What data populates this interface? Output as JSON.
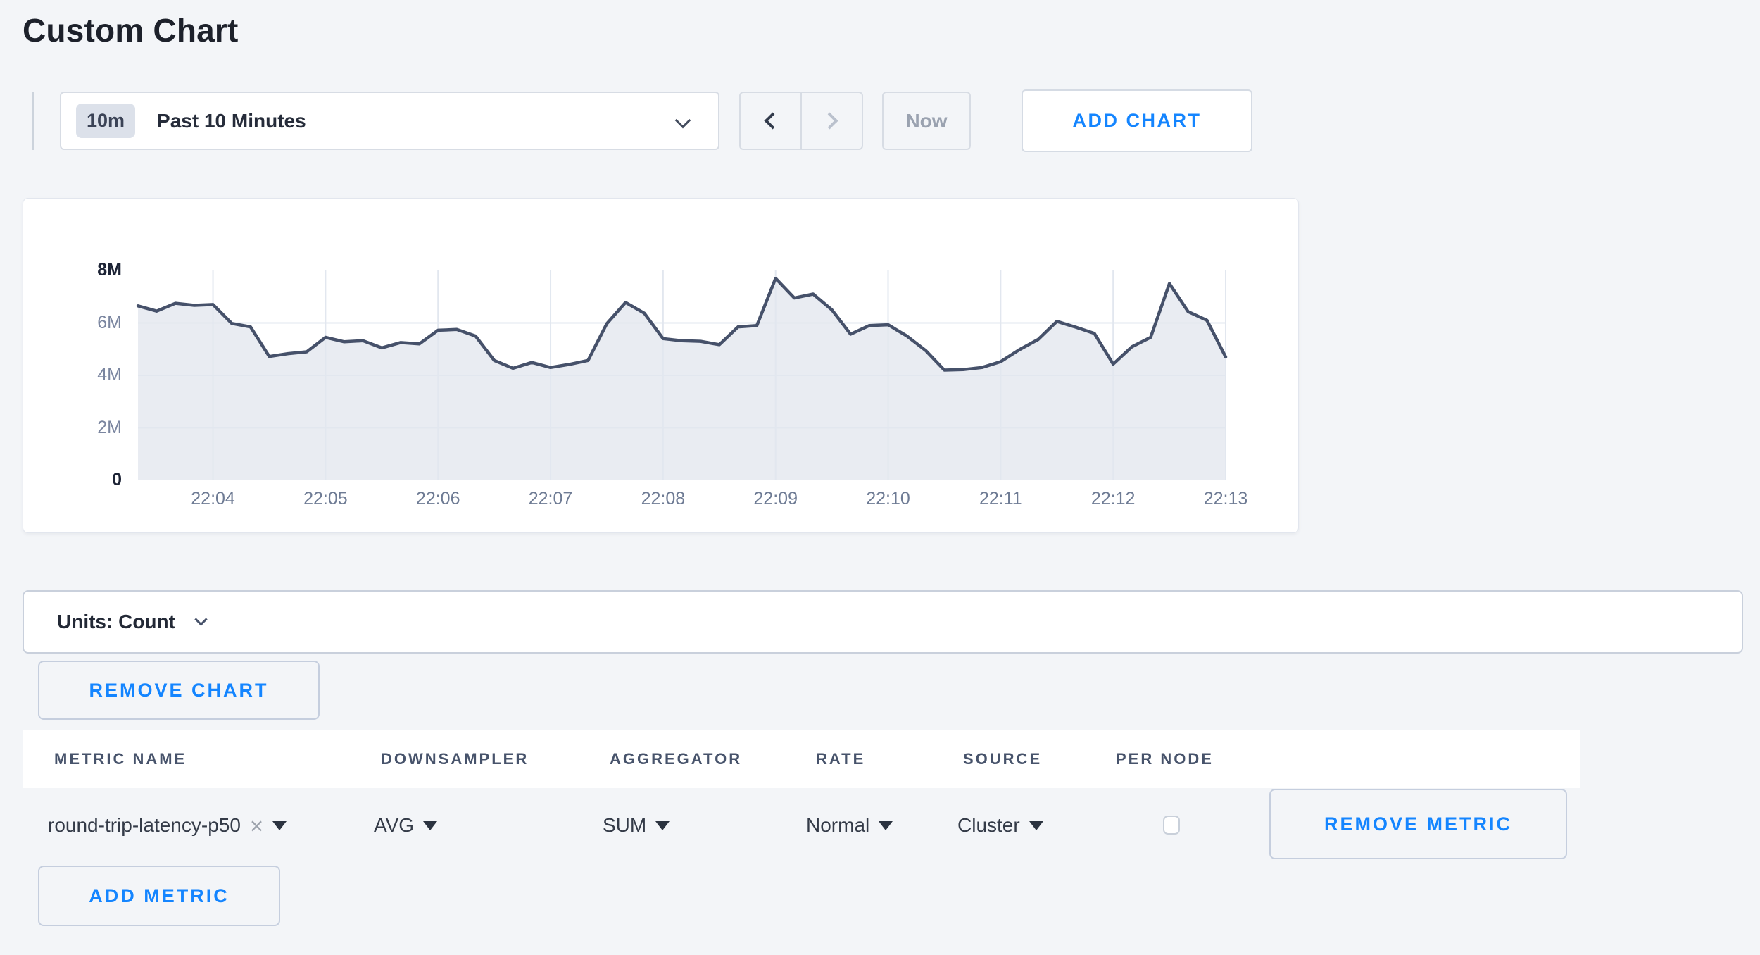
{
  "page": {
    "title": "Custom Chart",
    "background": "#f3f5f8",
    "accent_blue": "#1485ff"
  },
  "toolbar": {
    "time_window": {
      "badge": "10m",
      "label": "Past 10 Minutes"
    },
    "now_label": "Now",
    "add_chart_label": "ADD CHART"
  },
  "chart_section": {
    "remove_chart_label": "REMOVE CHART"
  },
  "units_bar": {
    "label": "Units: Count"
  },
  "metrics_table": {
    "headers": [
      "METRIC NAME",
      "DOWNSAMPLER",
      "AGGREGATOR",
      "RATE",
      "SOURCE",
      "PER NODE"
    ],
    "rows": [
      {
        "metric_name": "round-trip-latency-p50",
        "downsampler": "AVG",
        "aggregator": "SUM",
        "rate": "Normal",
        "source": "Cluster",
        "per_node_checked": false
      }
    ],
    "remove_metric_label": "REMOVE METRIC",
    "add_metric_label": "ADD METRIC"
  },
  "chart_data": {
    "type": "area",
    "title": "",
    "xlabel": "",
    "ylabel": "",
    "x_start_time": "22:03:20",
    "x_step_sec": 10,
    "x_span_sec": 580,
    "x_tick_labels": [
      "22:04",
      "22:05",
      "22:06",
      "22:07",
      "22:08",
      "22:09",
      "22:10",
      "22:11",
      "22:12",
      "22:13"
    ],
    "x_tick_offsets_sec": [
      40,
      100,
      160,
      220,
      280,
      340,
      400,
      460,
      520,
      580
    ],
    "ylim_millions": [
      0,
      8
    ],
    "y_ticks": [
      {
        "value": 0,
        "label": "0",
        "strong": true
      },
      {
        "value": 2,
        "label": "2M",
        "strong": false
      },
      {
        "value": 4,
        "label": "4M",
        "strong": false
      },
      {
        "value": 6,
        "label": "6M",
        "strong": false
      },
      {
        "value": 8,
        "label": "8M",
        "strong": true
      }
    ],
    "grid": true,
    "legend": "none",
    "series": [
      {
        "name": "round-trip-latency-p50",
        "unit": "count",
        "values_millions": [
          6.65,
          6.45,
          6.75,
          6.67,
          6.7,
          5.98,
          5.85,
          4.72,
          4.83,
          4.9,
          5.45,
          5.28,
          5.32,
          5.05,
          5.25,
          5.2,
          5.72,
          5.75,
          5.5,
          4.57,
          4.27,
          4.49,
          4.3,
          4.42,
          4.57,
          5.97,
          6.78,
          6.37,
          5.4,
          5.32,
          5.3,
          5.17,
          5.85,
          5.9,
          7.7,
          6.95,
          7.1,
          6.5,
          5.57,
          5.9,
          5.93,
          5.5,
          4.95,
          4.2,
          4.22,
          4.3,
          4.52,
          4.98,
          5.37,
          6.06,
          5.84,
          5.6,
          4.43,
          5.09,
          5.45,
          7.5,
          6.43,
          6.1,
          4.7
        ]
      }
    ],
    "line_color": "#46516a",
    "fill_color": "#e9ecf2",
    "grid_color": "#e2e7ef"
  }
}
